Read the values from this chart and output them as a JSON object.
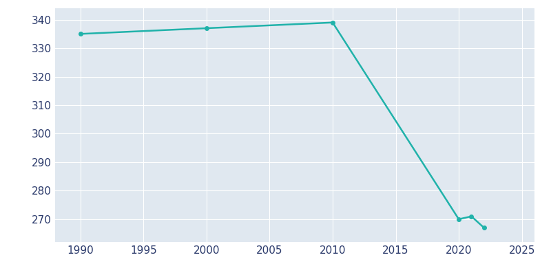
{
  "years": [
    1990,
    2000,
    2010,
    2020,
    2021,
    2022
  ],
  "population": [
    335,
    337,
    339,
    270,
    271,
    267
  ],
  "line_color": "#20B2AA",
  "marker_color": "#20B2AA",
  "plot_background_color": "#E0E8F0",
  "figure_background_color": "#FFFFFF",
  "grid_color": "#FFFFFF",
  "text_color": "#2B3A6B",
  "xlim": [
    1988,
    2026
  ],
  "ylim": [
    262,
    344
  ],
  "xticks": [
    1990,
    1995,
    2000,
    2005,
    2010,
    2015,
    2020,
    2025
  ],
  "yticks": [
    270,
    280,
    290,
    300,
    310,
    320,
    330,
    340
  ],
  "linewidth": 1.8,
  "markersize": 4,
  "tick_labelsize": 11
}
